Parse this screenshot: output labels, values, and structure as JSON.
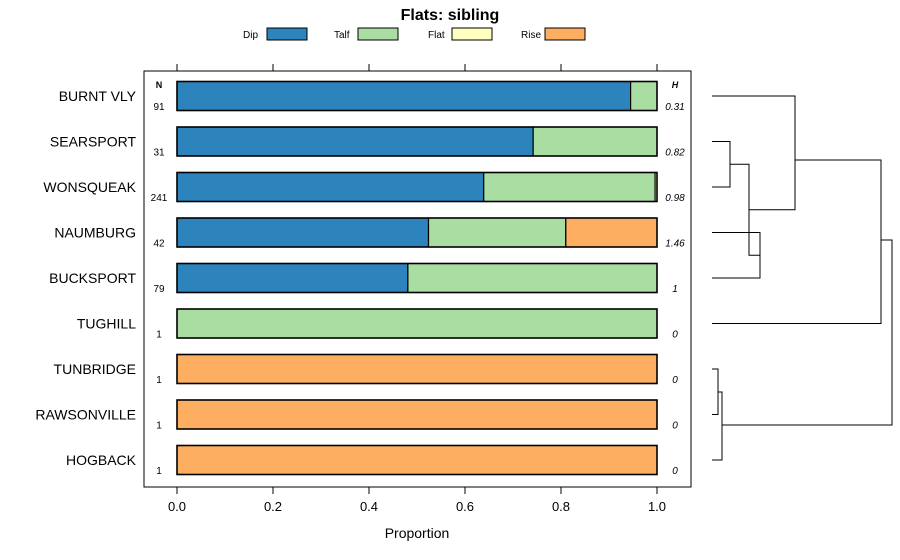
{
  "chart_data": {
    "type": "bar",
    "orientation": "horizontal",
    "stacked": true,
    "title": "Flats: sibling",
    "xlabel": "Proportion",
    "ylabel": "",
    "xlim": [
      0,
      1
    ],
    "x_ticks": [
      "0.0",
      "0.2",
      "0.4",
      "0.6",
      "0.8",
      "1.0"
    ],
    "x_tick_values": [
      0,
      0.2,
      0.4,
      0.6,
      0.8,
      1.0
    ],
    "n_header": "N",
    "h_header": "H",
    "legend_position": "top",
    "categories": [
      "BURNT VLY",
      "SEARSPORT",
      "WONSQUEAK",
      "NAUMBURG",
      "BUCKSPORT",
      "TUGHILL",
      "TUNBRIDGE",
      "RAWSONVILLE",
      "HOGBACK"
    ],
    "n_values": [
      "91",
      "31",
      "241",
      "42",
      "79",
      "1",
      "1",
      "1",
      "1"
    ],
    "h_values": [
      "0.31",
      "0.82",
      "0.98",
      "1.46",
      "1",
      "0",
      "0",
      "0",
      "0"
    ],
    "series": [
      {
        "name": "Dip",
        "color": "#2d84bd",
        "values": [
          0.945,
          0.742,
          0.639,
          0.524,
          0.481,
          0,
          0,
          0,
          0
        ]
      },
      {
        "name": "Talf",
        "color": "#aadda2",
        "values": [
          0.055,
          0.258,
          0.357,
          0.286,
          0.519,
          1,
          0,
          0,
          0
        ]
      },
      {
        "name": "Flat",
        "color": "#ffffc0",
        "values": [
          0,
          0,
          0.004,
          0,
          0,
          0,
          0,
          0,
          0
        ]
      },
      {
        "name": "Rise",
        "color": "#fdae61",
        "values": [
          0,
          0,
          0,
          0.19,
          0,
          0,
          1,
          1,
          1
        ]
      }
    ],
    "dendrogram": {
      "description": "hierarchical clustering of sites shown to the right of the bars",
      "merges": [
        {
          "left": "SEARSPORT",
          "right": "WONSQUEAK"
        },
        {
          "left": "NAUMBURG",
          "right": "BUCKSPORT"
        },
        {
          "left": "SEARSPORT+WONSQUEAK",
          "right": "NAUMBURG+BUCKSPORT"
        },
        {
          "left": "BURNT VLY",
          "right": "SEARSPORT+WONSQUEAK+NAUMBURG+BUCKSPORT"
        },
        {
          "left": "TUNBRIDGE",
          "right": "RAWSONVILLE"
        },
        {
          "left": "TUNBRIDGE+RAWSONVILLE",
          "right": "HOGBACK"
        },
        {
          "left": "BURNT VLY+...+BUCKSPORT",
          "right": "TUGHILL"
        },
        {
          "left": "upper cluster",
          "right": "lower cluster"
        }
      ]
    }
  }
}
